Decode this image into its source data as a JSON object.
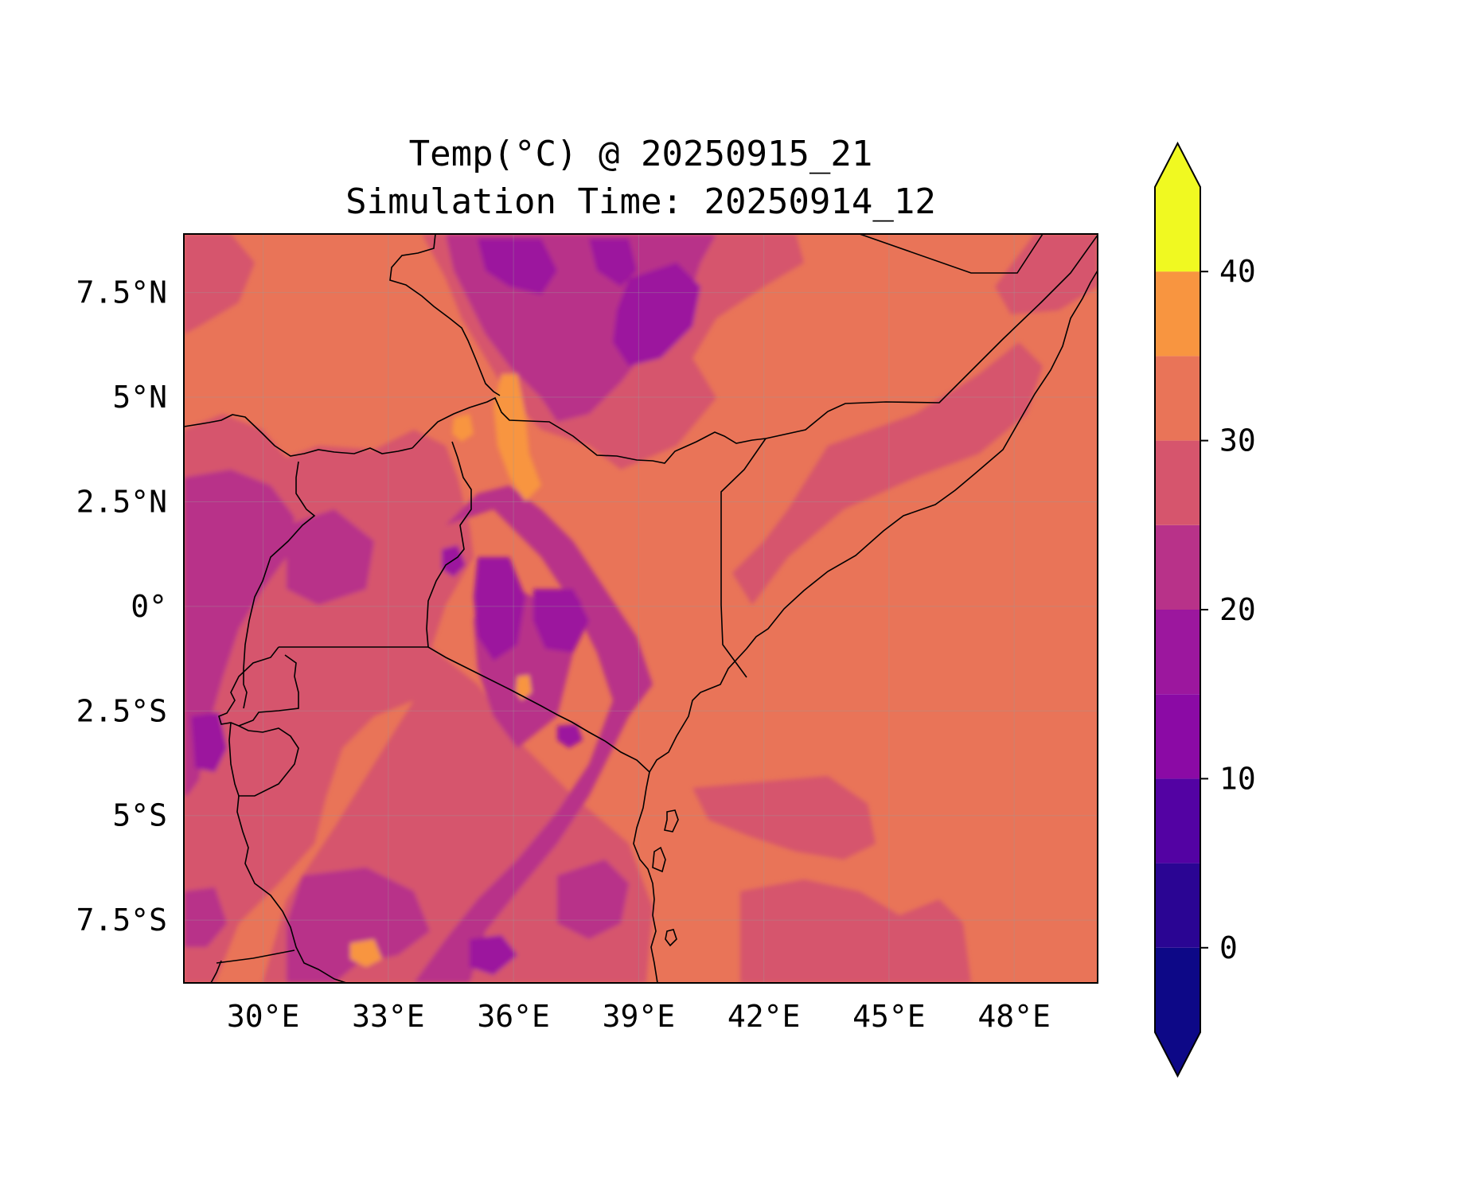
{
  "title": {
    "line1": "Temp(°C) @ 20250915_21",
    "line2": "Simulation Time: 20250914_12"
  },
  "map": {
    "lon_range": [
      28.1,
      50.0
    ],
    "lat_range": [
      -9.0,
      8.9
    ],
    "x_ticks": [
      {
        "lon": 30,
        "label": "30°E"
      },
      {
        "lon": 33,
        "label": "33°E"
      },
      {
        "lon": 36,
        "label": "36°E"
      },
      {
        "lon": 39,
        "label": "39°E"
      },
      {
        "lon": 42,
        "label": "42°E"
      },
      {
        "lon": 45,
        "label": "45°E"
      },
      {
        "lon": 48,
        "label": "48°E"
      }
    ],
    "y_ticks": [
      {
        "lat": 7.5,
        "label": "7.5°N"
      },
      {
        "lat": 5,
        "label": "5°N"
      },
      {
        "lat": 2.5,
        "label": "2.5°N"
      },
      {
        "lat": 0,
        "label": "0°"
      },
      {
        "lat": -2.5,
        "label": "2.5°S"
      },
      {
        "lat": -5,
        "label": "5°S"
      },
      {
        "lat": -7.5,
        "label": "7.5°S"
      }
    ],
    "field_colors": {
      "warm": "#e97458",
      "mild": "#d6556d",
      "cool": "#b83289",
      "cold": "#9c179e",
      "hot": "#f89540",
      "ocean": "#e97458"
    }
  },
  "colorbar": {
    "levels": [
      -5,
      0,
      5,
      10,
      15,
      20,
      25,
      30,
      35,
      40,
      45
    ],
    "colors": [
      "#0d0887",
      "#2a0593",
      "#5302a3",
      "#8b0aa5",
      "#9c179e",
      "#b83289",
      "#d6556d",
      "#e97458",
      "#f89540",
      "#fdb42f",
      "#f0f921"
    ],
    "under_color": "#0d0887",
    "over_color": "#f0f921",
    "tick_labels": [
      {
        "value": 0,
        "label": "0"
      },
      {
        "value": 10,
        "label": "10"
      },
      {
        "value": 20,
        "label": "20"
      },
      {
        "value": 30,
        "label": "30"
      },
      {
        "value": 40,
        "label": "40"
      }
    ]
  }
}
